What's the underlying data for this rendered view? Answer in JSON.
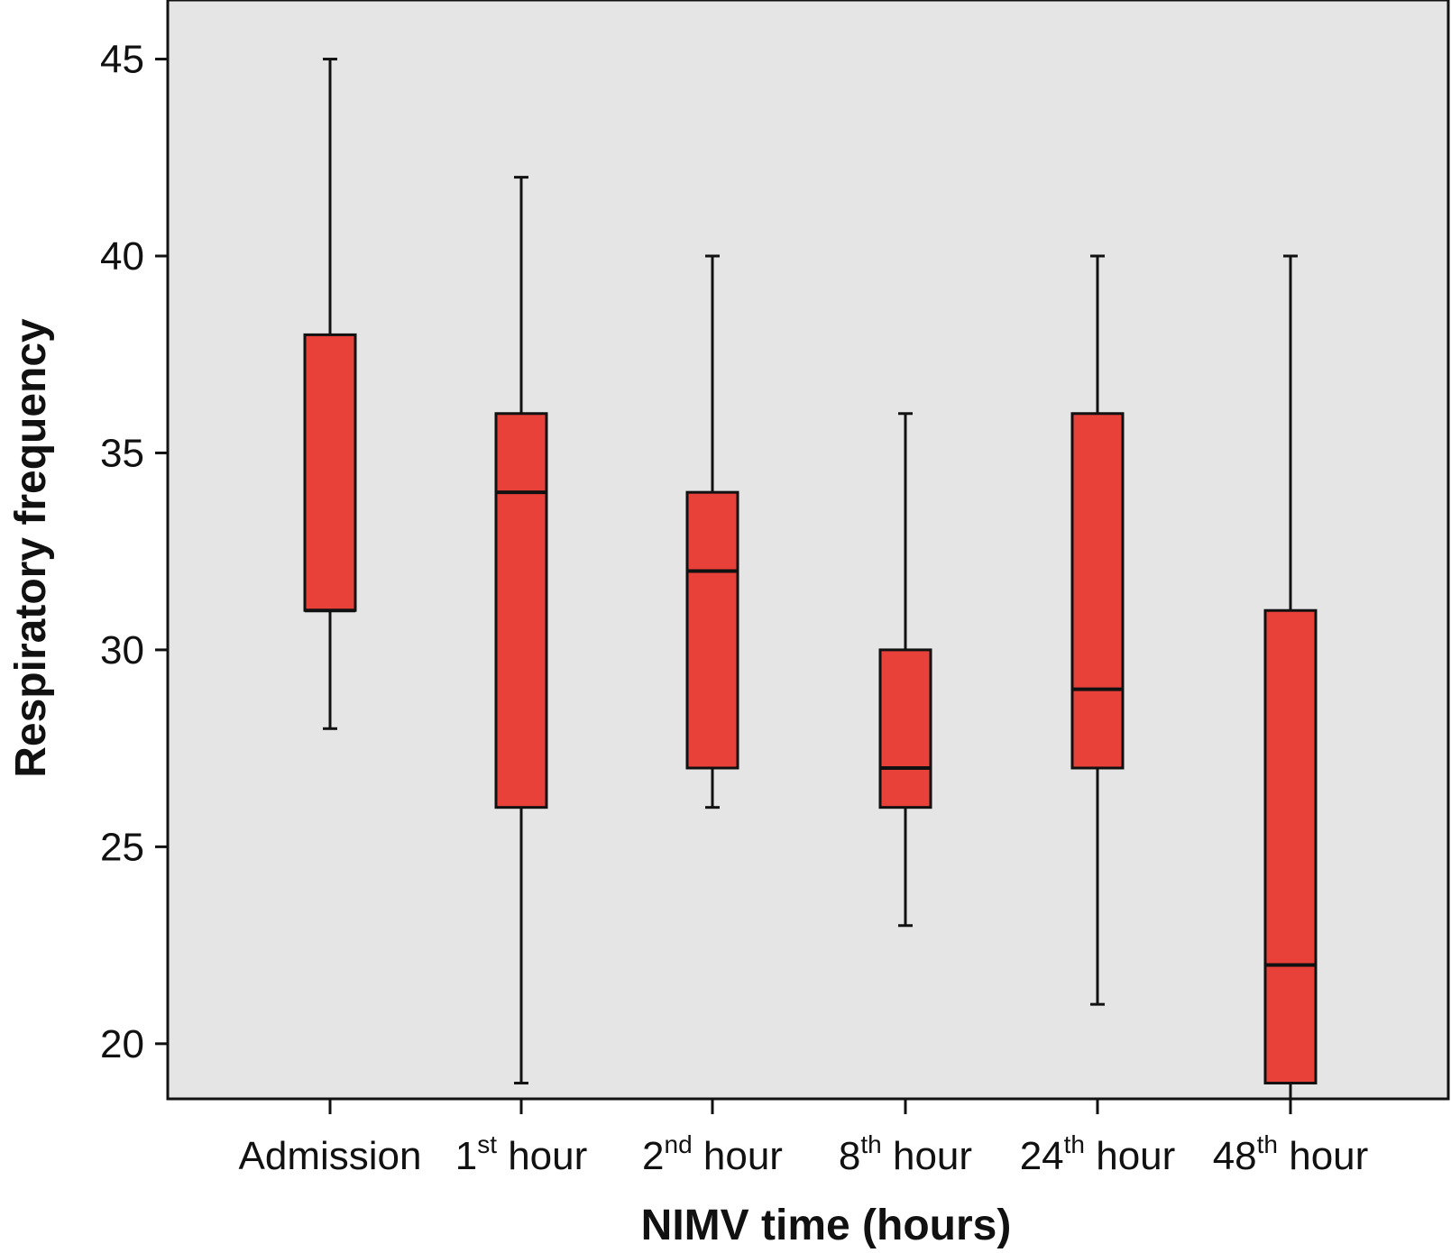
{
  "chart_data": {
    "type": "box",
    "title": "",
    "xlabel": "NIMV time (hours)",
    "ylabel": "Respiratory frequency",
    "ylim": [
      18.6,
      46.5
    ],
    "yticks": [
      20,
      25,
      30,
      35,
      40,
      45
    ],
    "grid": false,
    "legend": "none",
    "colors": {
      "box_fill": "#e8413a",
      "plot_background": "#e5e5e5",
      "stroke": "#111111"
    },
    "categories": [
      {
        "label": "Admission",
        "num": "",
        "sup": "",
        "word": ""
      },
      {
        "label": "1st hour",
        "num": "1",
        "sup": "st",
        "word": " hour"
      },
      {
        "label": "2nd hour",
        "num": "2",
        "sup": "nd",
        "word": " hour"
      },
      {
        "label": "8th hour",
        "num": "8",
        "sup": "th",
        "word": " hour"
      },
      {
        "label": "24th hour",
        "num": "24",
        "sup": "th",
        "word": " hour"
      },
      {
        "label": "48th hour",
        "num": "48",
        "sup": "th",
        "word": " hour"
      }
    ],
    "boxes": [
      {
        "whisker_low": 28,
        "q1": 31,
        "median": 31,
        "q3": 38,
        "whisker_high": 45
      },
      {
        "whisker_low": 19,
        "q1": 26,
        "median": 34,
        "q3": 36,
        "whisker_high": 42
      },
      {
        "whisker_low": 26,
        "q1": 27,
        "median": 32,
        "q3": 34,
        "whisker_high": 40
      },
      {
        "whisker_low": 23,
        "q1": 26,
        "median": 27,
        "q3": 30,
        "whisker_high": 36
      },
      {
        "whisker_low": 21,
        "q1": 27,
        "median": 29,
        "q3": 36,
        "whisker_high": 40
      },
      {
        "whisker_low": 18.6,
        "q1": 19,
        "median": 22,
        "q3": 31,
        "whisker_high": 40
      }
    ]
  }
}
